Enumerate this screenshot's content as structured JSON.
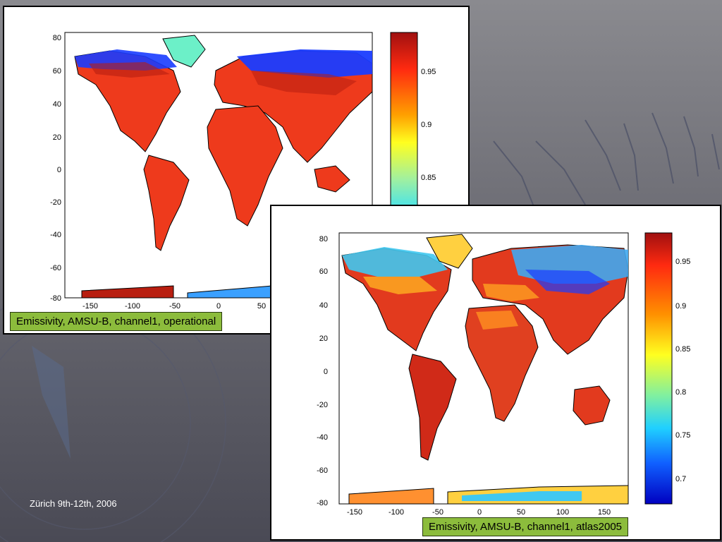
{
  "footer": "Zürich 9th-12th, 2006",
  "maps": [
    {
      "caption": "Emissivity, AMSU-B, channel1, operational",
      "lat_ticks": [
        "80",
        "60",
        "40",
        "20",
        "0",
        "-20",
        "-40",
        "-60",
        "-80"
      ],
      "lon_ticks": [
        "-150",
        "-100",
        "-50",
        "0",
        "50"
      ],
      "colorbar_ticks": [
        "0.95",
        "0.9",
        "0.85"
      ]
    },
    {
      "caption": "Emissivity, AMSU-B, channel1, atlas2005",
      "lat_ticks": [
        "80",
        "60",
        "40",
        "20",
        "0",
        "-20",
        "-40",
        "-60",
        "-80"
      ],
      "lon_ticks": [
        "-150",
        "-100",
        "-50",
        "0",
        "50",
        "100",
        "150"
      ],
      "colorbar_ticks": [
        "0.95",
        "0.9",
        "0.85",
        "0.8",
        "0.75",
        "0.7"
      ]
    }
  ],
  "colors": {
    "land_high": "#ee3a1c",
    "land_dark": "#b81e10",
    "polar_low": "#1a3cff",
    "caption_bg": "#8cbc3c"
  }
}
